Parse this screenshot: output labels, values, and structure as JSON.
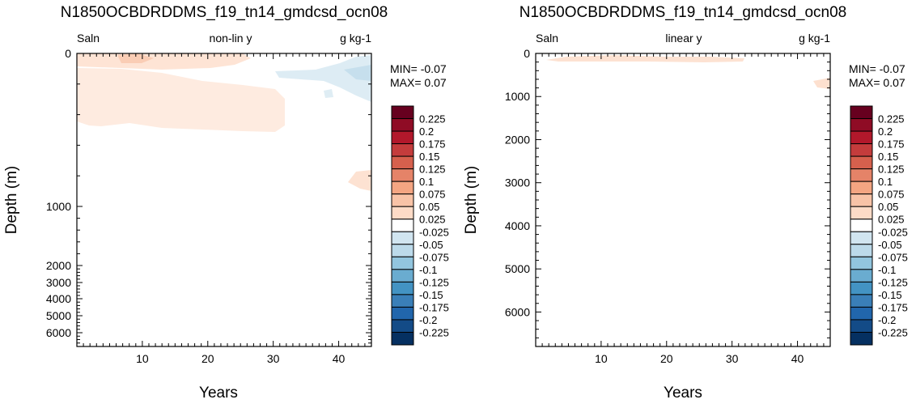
{
  "chart_data": [
    {
      "type": "heatmap",
      "title": "N1850OCBDRDDMS_f19_tn14_gmdcsd_ocn08",
      "left_label": "Saln",
      "center_label": "non-lin y",
      "right_label": "g kg-1",
      "xlabel": "Years",
      "ylabel": "Depth (m)",
      "xlim": [
        0,
        45
      ],
      "ylim": [
        0,
        6800
      ],
      "y_scale": "non-linear",
      "x_ticks": [
        "10",
        "20",
        "30",
        "40"
      ],
      "y_ticks": [
        "0",
        "1000",
        "2000",
        "3000",
        "4000",
        "5000",
        "6000"
      ],
      "min_text": "MIN= -0.07",
      "max_text": "MAX=  0.07",
      "features": [
        {
          "sign": "positive",
          "level": 0.025,
          "description": "0-130 m, years 0-28"
        },
        {
          "sign": "positive",
          "level": 0.025,
          "description": "80-550 m, years 0-31"
        },
        {
          "sign": "positive",
          "level": 0.025,
          "description": "800-950 m, years 40-45"
        },
        {
          "sign": "negative",
          "level": -0.025,
          "description": "0-300 m, years 30-45"
        }
      ]
    },
    {
      "type": "heatmap",
      "title": "N1850OCBDRDDMS_f19_tn14_gmdcsd_ocn08",
      "left_label": "Saln",
      "center_label": "linear y",
      "right_label": "g kg-1",
      "xlabel": "Years",
      "ylabel": "Depth (m)",
      "xlim": [
        0,
        45
      ],
      "ylim": [
        0,
        6800
      ],
      "y_scale": "linear",
      "x_ticks": [
        "10",
        "20",
        "30",
        "40"
      ],
      "y_ticks": [
        "0",
        "1000",
        "2000",
        "3000",
        "4000",
        "5000",
        "6000"
      ],
      "min_text": "MIN= -0.07",
      "max_text": "MAX=  0.07",
      "features": [
        {
          "sign": "positive",
          "level": 0.025,
          "description": "50-200 m, years 0-32"
        },
        {
          "sign": "positive",
          "level": 0.025,
          "description": "550-800 m, years 42-45"
        }
      ]
    }
  ],
  "colorbar": {
    "labels": [
      "0.225",
      "0.2",
      "0.175",
      "0.15",
      "0.125",
      "0.1",
      "0.075",
      "0.05",
      "0.025",
      "-0.025",
      "-0.05",
      "-0.075",
      "-0.1",
      "-0.125",
      "-0.15",
      "-0.175",
      "-0.2",
      "-0.225"
    ],
    "colors": [
      "#67001f",
      "#8f0c25",
      "#b2182b",
      "#c43c3c",
      "#d6604d",
      "#e58368",
      "#f4a582",
      "#f8c3a7",
      "#fddbc7",
      "#ffffff",
      "#d1e5f0",
      "#bcdaea",
      "#92c5de",
      "#6aacd0",
      "#4393c3",
      "#3a7fb8",
      "#2166ac",
      "#134b87",
      "#053061"
    ]
  }
}
